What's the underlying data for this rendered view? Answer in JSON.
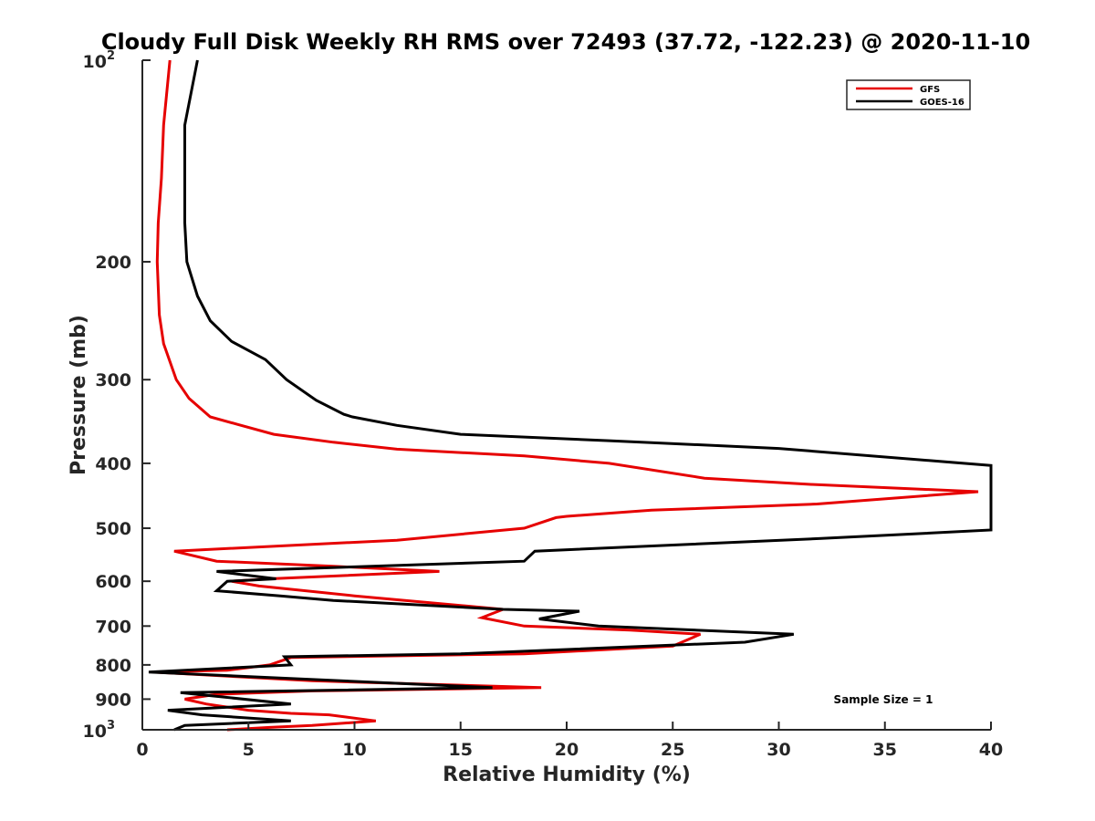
{
  "chart_data": {
    "type": "line",
    "title": "Cloudy Full Disk Weekly RH RMS over 72493 (37.72, -122.23) @ 2020-11-10",
    "xlabel": "Relative Humidity (%)",
    "ylabel": "Pressure (mb)",
    "xlim": [
      0,
      40
    ],
    "ylim": [
      100,
      1000
    ],
    "y_scale": "log",
    "y_reversed": true,
    "x_ticks": [
      0,
      5,
      10,
      15,
      20,
      25,
      30,
      35,
      40
    ],
    "y_tick_labels": [
      {
        "value": 100,
        "base": "10",
        "exp": "2"
      },
      {
        "value": 200,
        "base": "200",
        "exp": ""
      },
      {
        "value": 300,
        "base": "300",
        "exp": ""
      },
      {
        "value": 400,
        "base": "400",
        "exp": ""
      },
      {
        "value": 500,
        "base": "500",
        "exp": ""
      },
      {
        "value": 600,
        "base": "600",
        "exp": ""
      },
      {
        "value": 700,
        "base": "700",
        "exp": ""
      },
      {
        "value": 800,
        "base": "800",
        "exp": ""
      },
      {
        "value": 900,
        "base": "900",
        "exp": ""
      },
      {
        "value": 1000,
        "base": "10",
        "exp": "3"
      }
    ],
    "grid": false,
    "legend_position": "top-right",
    "annotation": "Sample Size = 1",
    "series": [
      {
        "name": "GFS",
        "color": "#e60000",
        "points": [
          [
            1.3,
            100
          ],
          [
            1.0,
            125
          ],
          [
            0.9,
            150
          ],
          [
            0.75,
            175
          ],
          [
            0.7,
            200
          ],
          [
            0.8,
            240
          ],
          [
            1.0,
            265
          ],
          [
            1.6,
            300
          ],
          [
            2.2,
            320
          ],
          [
            3.2,
            341
          ],
          [
            4.5,
            350
          ],
          [
            6.2,
            362
          ],
          [
            9.0,
            372
          ],
          [
            12.0,
            381
          ],
          [
            18.0,
            390
          ],
          [
            22.0,
            400
          ],
          [
            26.5,
            421
          ],
          [
            31.5,
            430
          ],
          [
            39.4,
            441
          ],
          [
            31.8,
            460
          ],
          [
            24.0,
            470
          ],
          [
            20.0,
            480
          ],
          [
            19.5,
            482
          ],
          [
            18.0,
            500
          ],
          [
            12.0,
            521
          ],
          [
            1.5,
            541
          ],
          [
            3.5,
            560
          ],
          [
            9.0,
            570
          ],
          [
            14.0,
            580
          ],
          [
            6.0,
            595
          ],
          [
            4.2,
            600
          ],
          [
            5.5,
            610
          ],
          [
            10.0,
            631
          ],
          [
            17.0,
            661
          ],
          [
            16.0,
            680
          ],
          [
            18.0,
            700
          ],
          [
            23.0,
            710
          ],
          [
            26.3,
            720
          ],
          [
            25.0,
            750
          ],
          [
            18.0,
            770
          ],
          [
            7.0,
            780
          ],
          [
            6.0,
            800
          ],
          [
            4.0,
            815
          ],
          [
            0.5,
            820
          ],
          [
            8.0,
            845
          ],
          [
            18.8,
            865
          ],
          [
            8.0,
            875
          ],
          [
            3.5,
            885
          ],
          [
            2.0,
            900
          ],
          [
            3.0,
            915
          ],
          [
            5.0,
            935
          ],
          [
            7.0,
            945
          ],
          [
            8.8,
            950
          ],
          [
            11.0,
            970
          ],
          [
            8.0,
            985
          ],
          [
            6.0,
            992
          ],
          [
            4.0,
            1000
          ]
        ]
      },
      {
        "name": "GOES-16",
        "color": "#000000",
        "points": [
          [
            2.6,
            100
          ],
          [
            2.0,
            125
          ],
          [
            2.0,
            150
          ],
          [
            2.0,
            175
          ],
          [
            2.1,
            200
          ],
          [
            2.6,
            225
          ],
          [
            3.2,
            245
          ],
          [
            4.2,
            263
          ],
          [
            5.8,
            280
          ],
          [
            6.8,
            300
          ],
          [
            8.2,
            322
          ],
          [
            9.5,
            338
          ],
          [
            9.9,
            341
          ],
          [
            12.0,
            351
          ],
          [
            15.0,
            362
          ],
          [
            22.0,
            370
          ],
          [
            30.0,
            380
          ],
          [
            40.0,
            403
          ],
          [
            40.0,
            503
          ],
          [
            32.0,
            518
          ],
          [
            18.5,
            541
          ],
          [
            18.0,
            560
          ],
          [
            3.5,
            580
          ],
          [
            6.3,
            595
          ],
          [
            4.0,
            600
          ],
          [
            3.5,
            620
          ],
          [
            6.5,
            631
          ],
          [
            9.0,
            641
          ],
          [
            17.0,
            661
          ],
          [
            20.6,
            665
          ],
          [
            18.7,
            683
          ],
          [
            21.5,
            700
          ],
          [
            30.7,
            720
          ],
          [
            28.4,
            740
          ],
          [
            15.0,
            770
          ],
          [
            6.7,
            778
          ],
          [
            7.0,
            800
          ],
          [
            0.3,
            820
          ],
          [
            16.5,
            865
          ],
          [
            1.8,
            880
          ],
          [
            7.0,
            915
          ],
          [
            1.2,
            935
          ],
          [
            2.8,
            950
          ],
          [
            7.0,
            970
          ],
          [
            2.0,
            985
          ],
          [
            1.5,
            1000
          ]
        ]
      }
    ]
  }
}
